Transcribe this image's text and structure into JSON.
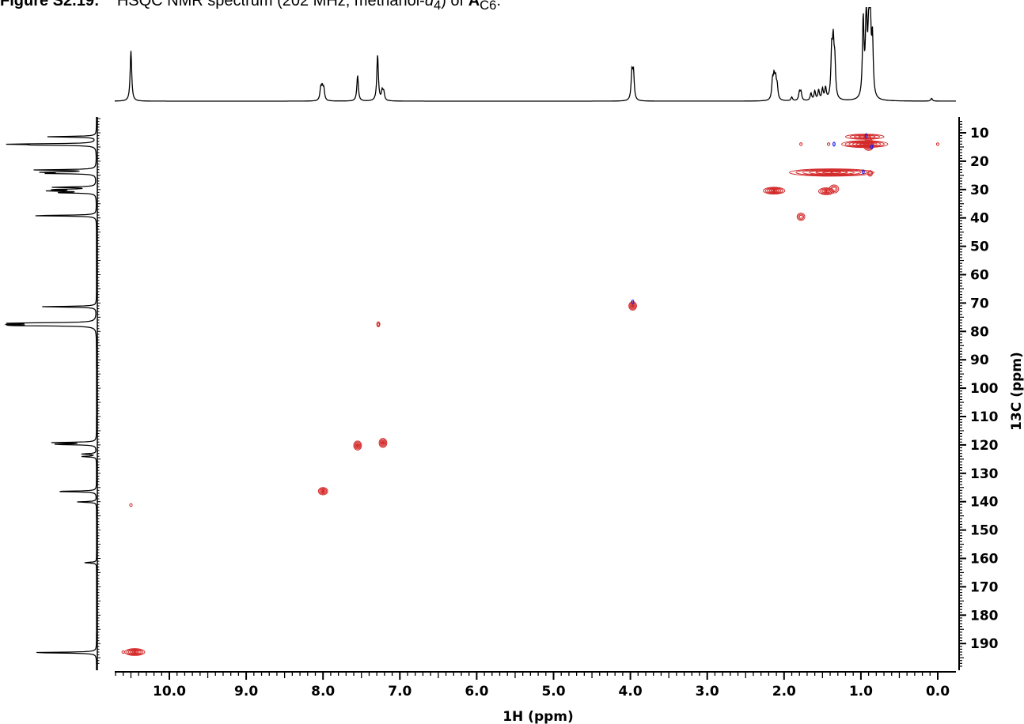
{
  "caption": {
    "label": "Figure S2.19:",
    "text_before": "HSQC NMR spectrum (202 MHz, methanol-",
    "solvent_subscript": "4",
    "text_after": ") of",
    "compound": "A",
    "compound_subscript": "C6",
    "end": "."
  },
  "chart_data": {
    "type": "heatmap",
    "subtype": "2D HSQC NMR contour plot",
    "xlabel": "1H (ppm)",
    "ylabel": "13C (ppm)",
    "x_axis": {
      "reversed": true,
      "min": 0.0,
      "max": 10.8,
      "tick_labels": [
        "10.0",
        "9.0",
        "8.0",
        "7.0",
        "6.0",
        "5.0",
        "4.0",
        "3.0",
        "2.0",
        "1.0",
        "0.0"
      ]
    },
    "y_axis": {
      "reversed": true,
      "min": 5,
      "max": 195,
      "position": "right",
      "tick_labels": [
        "10",
        "20",
        "30",
        "40",
        "50",
        "60",
        "70",
        "80",
        "90",
        "100",
        "110",
        "120",
        "130",
        "140",
        "150",
        "160",
        "170",
        "180",
        "190"
      ]
    },
    "grid": false,
    "colors": {
      "positive": "#d42a2a",
      "negative": "#1a1ae6",
      "trace": "#000000"
    },
    "cross_peaks": [
      {
        "h": 10.45,
        "c": 193.0,
        "wx": 0.13,
        "wy": 1.2,
        "n": 5
      },
      {
        "h": 10.6,
        "c": 193.0,
        "wx": 0.01,
        "wy": 0.4,
        "n": 1
      },
      {
        "h": 10.5,
        "c": 141.2,
        "wx": 0.01,
        "wy": 0.5,
        "n": 1
      },
      {
        "h": 8.0,
        "c": 136.3,
        "wx": 0.06,
        "wy": 1.3,
        "n": 4
      },
      {
        "h": 7.55,
        "c": 120.2,
        "wx": 0.05,
        "wy": 1.6,
        "n": 4
      },
      {
        "h": 7.22,
        "c": 119.3,
        "wx": 0.05,
        "wy": 1.6,
        "n": 4
      },
      {
        "h": 7.28,
        "c": 77.5,
        "wx": 0.02,
        "wy": 0.9,
        "n": 2
      },
      {
        "h": 3.97,
        "c": 71.0,
        "wx": 0.05,
        "wy": 1.5,
        "n": 4
      },
      {
        "h": 1.78,
        "c": 39.6,
        "wx": 0.05,
        "wy": 1.3,
        "n": 3
      },
      {
        "h": 2.13,
        "c": 30.4,
        "wx": 0.14,
        "wy": 1.2,
        "n": 5
      },
      {
        "h": 1.45,
        "c": 30.6,
        "wx": 0.1,
        "wy": 1.2,
        "n": 4
      },
      {
        "h": 1.35,
        "c": 29.8,
        "wx": 0.06,
        "wy": 1.4,
        "n": 3
      },
      {
        "h": 1.38,
        "c": 24.0,
        "wx": 0.55,
        "wy": 1.3,
        "n": 6
      },
      {
        "h": 0.88,
        "c": 24.3,
        "wx": 0.03,
        "wy": 1.0,
        "n": 2
      },
      {
        "h": 0.95,
        "c": 11.4,
        "wx": 0.25,
        "wy": 0.9,
        "n": 4
      },
      {
        "h": 0.95,
        "c": 14.0,
        "wx": 0.3,
        "wy": 1.2,
        "n": 6
      },
      {
        "h": 0.9,
        "c": 14.2,
        "wx": 0.07,
        "wy": 2.0,
        "n": 5
      },
      {
        "h": 1.78,
        "c": 14.0,
        "wx": 0.01,
        "wy": 0.5,
        "n": 1
      },
      {
        "h": 1.42,
        "c": 14.0,
        "wx": 0.015,
        "wy": 0.5,
        "n": 1
      },
      {
        "h": 0.0,
        "c": 14.0,
        "wx": 0.01,
        "wy": 0.4,
        "n": 1
      }
    ],
    "negative_peaks": [
      {
        "h": 1.35,
        "c": 14.0
      },
      {
        "h": 0.97,
        "c": 23.8
      },
      {
        "h": 0.86,
        "c": 14.9
      },
      {
        "h": 0.93,
        "c": 11.0
      },
      {
        "h": 3.97,
        "c": 69.6
      }
    ],
    "h1_projection_peaks": [
      {
        "h": 10.5,
        "i": 0.55
      },
      {
        "h": 8.03,
        "i": 0.13
      },
      {
        "h": 8.01,
        "i": 0.13
      },
      {
        "h": 7.99,
        "i": 0.12
      },
      {
        "h": 7.55,
        "i": 0.28
      },
      {
        "h": 7.29,
        "i": 0.5
      },
      {
        "h": 7.23,
        "i": 0.1
      },
      {
        "h": 7.21,
        "i": 0.09
      },
      {
        "h": 3.98,
        "i": 0.3
      },
      {
        "h": 3.96,
        "i": 0.29
      },
      {
        "h": 2.15,
        "i": 0.2
      },
      {
        "h": 2.13,
        "i": 0.22
      },
      {
        "h": 2.11,
        "i": 0.2
      },
      {
        "h": 2.09,
        "i": 0.14
      },
      {
        "h": 1.9,
        "i": 0.04
      },
      {
        "h": 1.8,
        "i": 0.09
      },
      {
        "h": 1.78,
        "i": 0.09
      },
      {
        "h": 1.65,
        "i": 0.08
      },
      {
        "h": 1.6,
        "i": 0.1
      },
      {
        "h": 1.55,
        "i": 0.11
      },
      {
        "h": 1.5,
        "i": 0.12
      },
      {
        "h": 1.46,
        "i": 0.13
      },
      {
        "h": 1.38,
        "i": 0.5
      },
      {
        "h": 1.36,
        "i": 0.55
      },
      {
        "h": 1.34,
        "i": 0.38
      },
      {
        "h": 0.97,
        "i": 0.85
      },
      {
        "h": 0.93,
        "i": 0.95
      },
      {
        "h": 0.9,
        "i": 0.55
      },
      {
        "h": 0.88,
        "i": 1.0
      },
      {
        "h": 0.85,
        "i": 0.62
      },
      {
        "h": 0.08,
        "i": 0.03
      }
    ],
    "c13_projection_peaks": [
      {
        "c": 11.4,
        "i": 0.55
      },
      {
        "c": 14.0,
        "i": 0.98
      },
      {
        "c": 14.3,
        "i": 0.55
      },
      {
        "c": 23.1,
        "i": 0.68
      },
      {
        "c": 23.9,
        "i": 0.55
      },
      {
        "c": 24.3,
        "i": 0.55
      },
      {
        "c": 29.2,
        "i": 0.48
      },
      {
        "c": 30.0,
        "i": 0.48
      },
      {
        "c": 30.5,
        "i": 0.5
      },
      {
        "c": 31.1,
        "i": 0.45
      },
      {
        "c": 39.2,
        "i": 0.75
      },
      {
        "c": 71.3,
        "i": 0.62
      },
      {
        "c": 77.1,
        "i": 0.95
      },
      {
        "c": 77.5,
        "i": 0.95
      },
      {
        "c": 77.9,
        "i": 0.95
      },
      {
        "c": 119.2,
        "i": 0.48
      },
      {
        "c": 119.8,
        "i": 0.48
      },
      {
        "c": 123.2,
        "i": 0.17
      },
      {
        "c": 124.1,
        "i": 0.17
      },
      {
        "c": 136.4,
        "i": 0.48
      },
      {
        "c": 140.1,
        "i": 0.22
      },
      {
        "c": 161.5,
        "i": 0.14
      },
      {
        "c": 193.2,
        "i": 0.75
      }
    ]
  }
}
